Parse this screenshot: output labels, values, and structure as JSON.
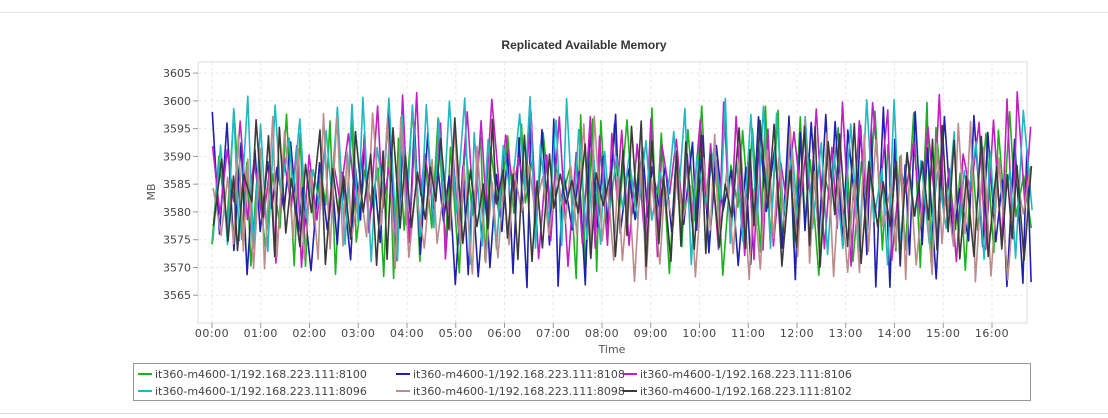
{
  "chart_data": {
    "type": "line",
    "title": "Replicated Available Memory",
    "xlabel": "Time",
    "ylabel": "MB",
    "xlim": [
      "00:00",
      "16:50"
    ],
    "ylim": [
      3560,
      3607
    ],
    "grid": true,
    "legend_position": "bottom",
    "x_ticks": [
      "00:00",
      "01:00",
      "02:00",
      "03:00",
      "04:00",
      "05:00",
      "06:00",
      "07:00",
      "08:00",
      "09:00",
      "10:00",
      "11:00",
      "12:00",
      "13:00",
      "14:00",
      "15:00",
      "16:00"
    ],
    "y_ticks": [
      3565,
      3570,
      3575,
      3580,
      3585,
      3590,
      3595,
      3600,
      3605
    ],
    "series": [
      {
        "name": "it360-m4600-1/192.168.223.111:8100",
        "color": "#1db11d",
        "min": 3568,
        "max": 3600
      },
      {
        "name": "it360-m4600-1/192.168.223.111:8108",
        "color": "#1f1fb0",
        "min": 3566,
        "max": 3599
      },
      {
        "name": "it360-m4600-1/192.168.223.111:8106",
        "color": "#c21fc2",
        "min": 3570,
        "max": 3602
      },
      {
        "name": "it360-m4600-1/192.168.223.111:8096",
        "color": "#22b8c0",
        "min": 3570,
        "max": 3601
      },
      {
        "name": "it360-m4600-1/192.168.223.111:8098",
        "color": "#bc8c8c",
        "min": 3567,
        "max": 3598
      },
      {
        "name": "it360-m4600-1/192.168.223.111:8102",
        "color": "#3a3a3a",
        "min": 3570,
        "max": 3597
      }
    ]
  }
}
